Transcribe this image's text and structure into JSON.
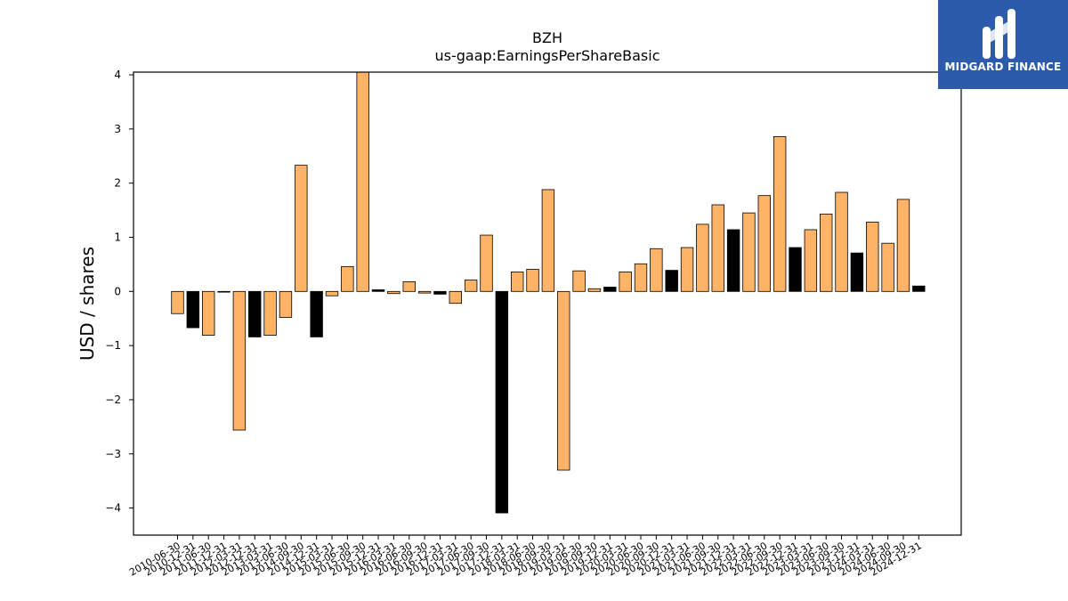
{
  "logo": {
    "text": "MIDGARD FINANCE"
  },
  "chart_data": {
    "type": "bar",
    "title": "BZH",
    "subtitle": "us-gaap:EarningsPerShareBasic",
    "ylabel": "USD / shares",
    "xlabel": "",
    "ylim": [
      -4.5,
      4.05
    ],
    "yticks": [
      -4,
      -3,
      -2,
      -1,
      0,
      1,
      2,
      3,
      4
    ],
    "grid": false,
    "colors": {
      "default": "#ffb366",
      "highlight": "#000000",
      "edge": "#000000"
    },
    "categories": [
      "2010-06-30",
      "2010-12-31",
      "2011-06-30",
      "2011-12-31",
      "2012-03-31",
      "2012-12-31",
      "2013-03-31",
      "2013-06-30",
      "2014-09-30",
      "2014-12-31",
      "2015-03-31",
      "2015-06-30",
      "2015-09-30",
      "2015-12-31",
      "2016-03-31",
      "2016-06-30",
      "2016-09-30",
      "2016-12-31",
      "2017-03-31",
      "2017-06-30",
      "2017-09-30",
      "2017-12-31",
      "2018-03-31",
      "2018-06-30",
      "2018-09-30",
      "2019-03-31",
      "2019-06-30",
      "2019-09-30",
      "2019-12-31",
      "2020-03-31",
      "2020-06-30",
      "2020-09-30",
      "2020-12-31",
      "2021-03-31",
      "2021-06-30",
      "2021-09-30",
      "2021-12-31",
      "2022-03-31",
      "2022-06-30",
      "2022-09-30",
      "2022-12-31",
      "2023-03-31",
      "2023-06-30",
      "2023-09-30",
      "2023-12-31",
      "2024-03-31",
      "2024-06-30",
      "2024-09-30",
      "2024-12-31"
    ],
    "values": [
      -0.41,
      -0.67,
      -0.81,
      -0.01,
      -2.56,
      -0.84,
      -0.81,
      -0.48,
      2.33,
      -0.84,
      -0.08,
      0.46,
      4.09,
      0.03,
      -0.04,
      0.18,
      -0.03,
      -0.05,
      -0.22,
      0.21,
      1.04,
      -4.09,
      0.36,
      0.41,
      1.88,
      -3.3,
      0.38,
      0.05,
      0.08,
      0.36,
      0.51,
      0.79,
      0.39,
      0.81,
      1.24,
      1.6,
      1.14,
      1.45,
      1.77,
      2.86,
      0.81,
      1.14,
      1.43,
      1.83,
      0.71,
      1.28,
      0.89,
      1.7,
      0.1
    ],
    "highlight": [
      false,
      true,
      false,
      true,
      false,
      true,
      false,
      false,
      false,
      true,
      false,
      false,
      false,
      true,
      false,
      false,
      false,
      true,
      false,
      false,
      false,
      true,
      false,
      false,
      false,
      false,
      false,
      false,
      true,
      false,
      false,
      false,
      true,
      false,
      false,
      false,
      true,
      false,
      false,
      false,
      true,
      false,
      false,
      false,
      true,
      false,
      false,
      false,
      true
    ]
  }
}
